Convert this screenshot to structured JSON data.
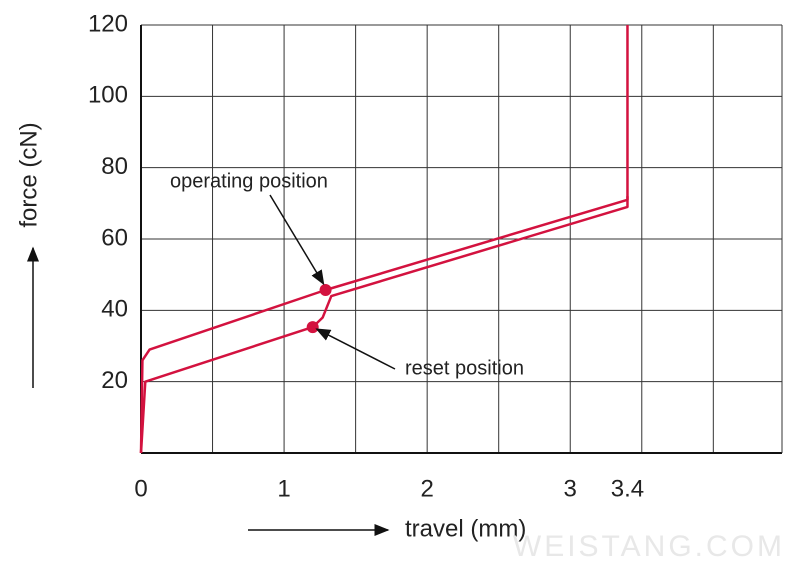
{
  "chart_data": {
    "type": "line",
    "xlabel": "travel (mm)",
    "ylabel": "force (cN)",
    "xlim": [
      0,
      4.48
    ],
    "ylim": [
      0,
      120
    ],
    "xticks": [
      0,
      1,
      2,
      3,
      3.4
    ],
    "yticks": [
      20,
      40,
      60,
      80,
      100,
      120
    ],
    "xgrid": [
      0.5,
      1,
      1.5,
      2,
      2.5,
      3,
      3.5,
      4
    ],
    "grid": true,
    "series": [
      {
        "color": "#d3123f",
        "x": [
          0,
          0.01,
          0.06,
          1.29,
          3.4,
          3.4
        ],
        "values": [
          0,
          26,
          29,
          45.7,
          71,
          120
        ]
      },
      {
        "color": "#d3123f",
        "x": [
          0,
          0.03,
          1.2,
          1.27,
          1.33,
          3.4,
          3.4
        ],
        "values": [
          0,
          20,
          35.3,
          38,
          44,
          69,
          72
        ]
      }
    ],
    "points": [
      {
        "label": "operating position",
        "x": 1.29,
        "y": 45.7,
        "color": "#d3123f"
      },
      {
        "label": "reset position",
        "x": 1.2,
        "y": 35.3,
        "color": "#d3123f"
      }
    ],
    "watermark": "WEISTANG.COM"
  }
}
